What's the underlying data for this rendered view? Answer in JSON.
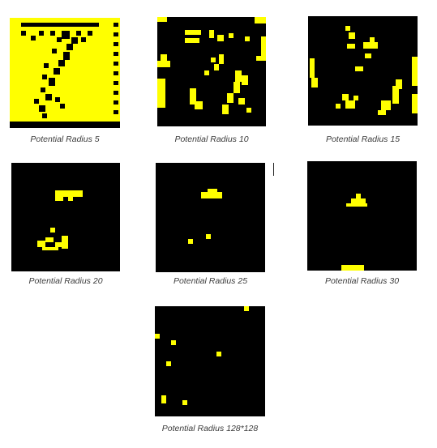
{
  "colors": {
    "background": "#000000",
    "active": "#ffff00",
    "caption": "#3c3c3c"
  },
  "panels": [
    {
      "id": "r5",
      "caption": "Potential Radius 5"
    },
    {
      "id": "r10",
      "caption": "Potential Radius 10"
    },
    {
      "id": "r15",
      "caption": "Potential Radius 15"
    },
    {
      "id": "r20",
      "caption": "Potential Radius 20"
    },
    {
      "id": "r25",
      "caption": "Potential Radius 25"
    },
    {
      "id": "r30",
      "caption": "Potential Radius 30"
    },
    {
      "id": "r128",
      "caption": "Potential Radius 128*128"
    }
  ]
}
